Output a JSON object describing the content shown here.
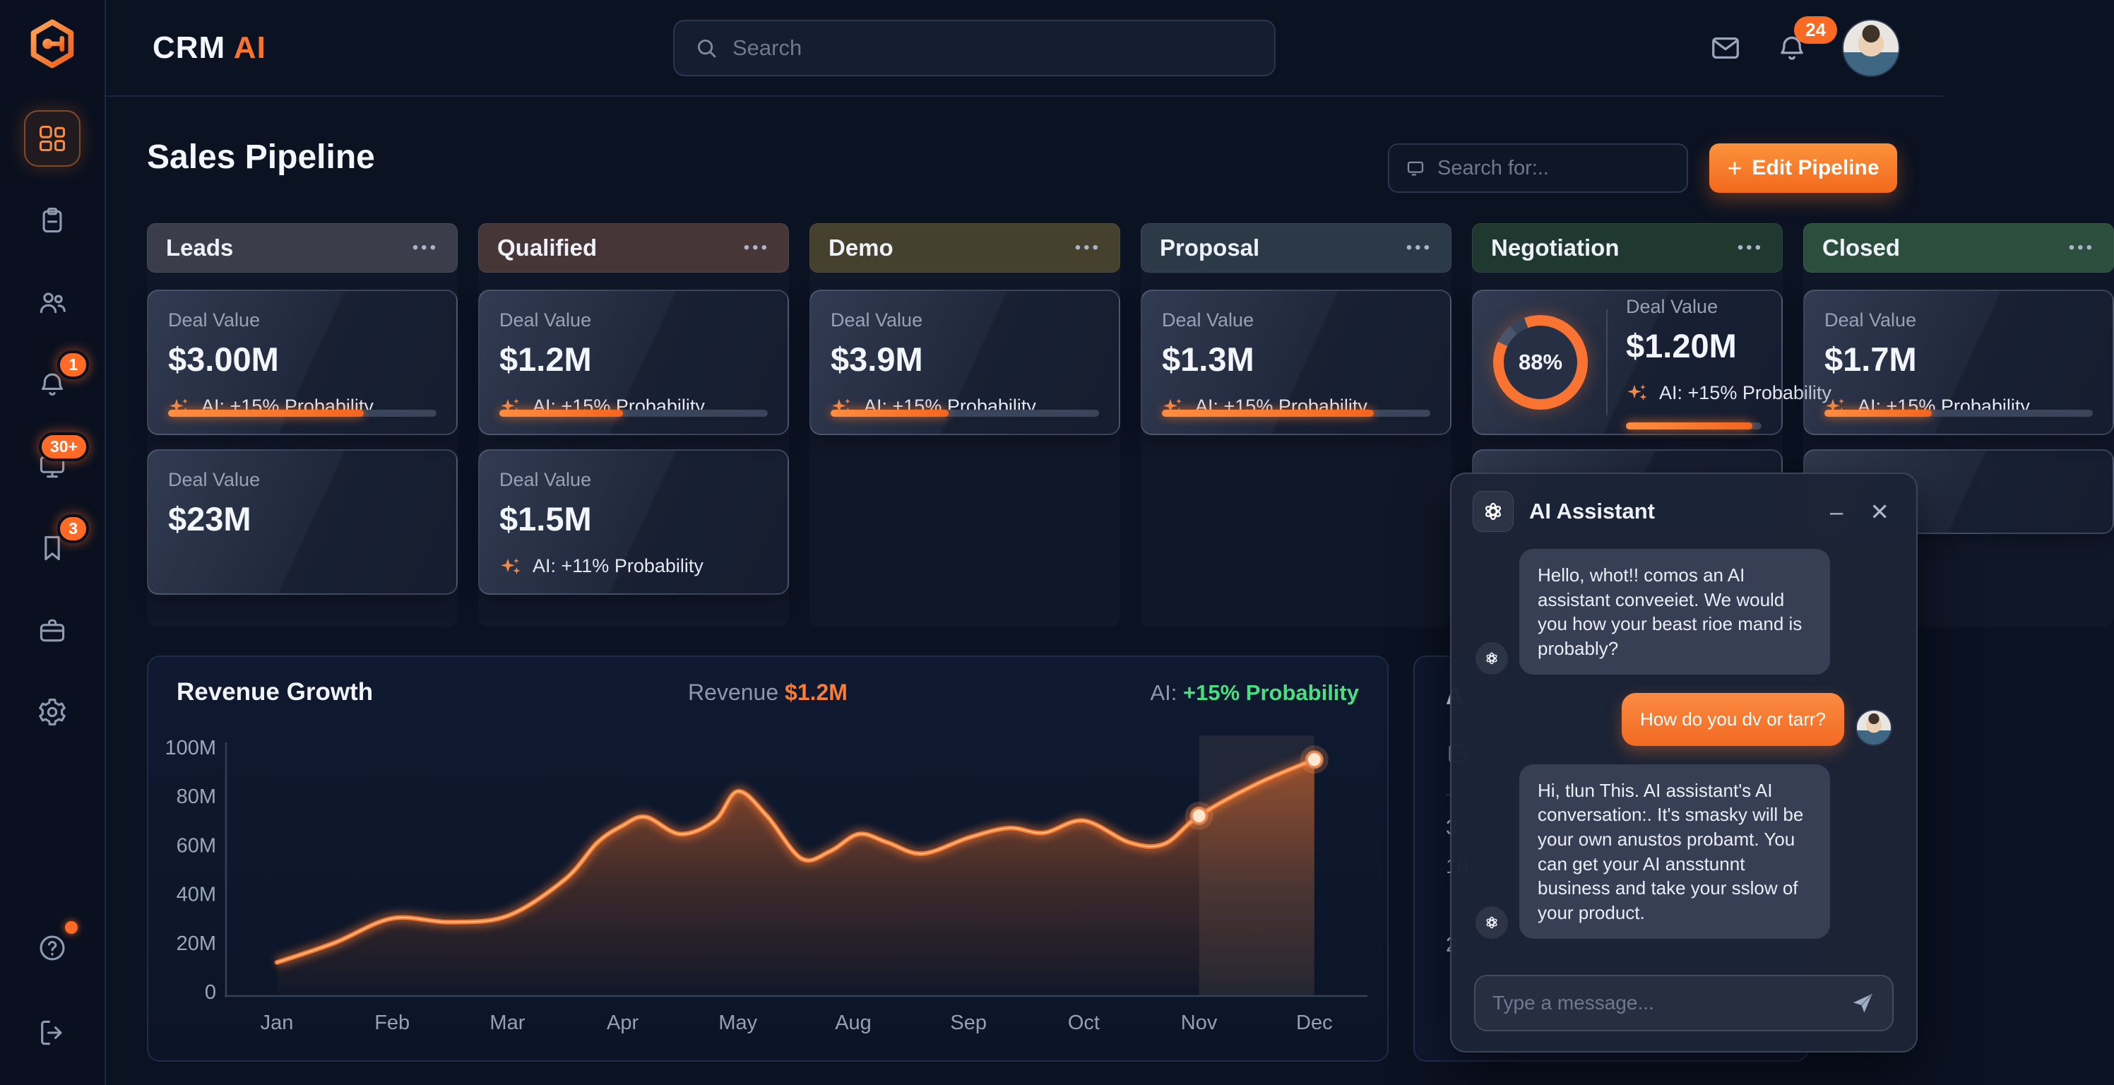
{
  "brand": {
    "name": "CRM",
    "accent": "AI"
  },
  "topbar": {
    "search_placeholder": "Search",
    "notification_count": "24"
  },
  "sidebar": {
    "items": [
      {
        "id": "dashboard",
        "icon": "grid",
        "active": true
      },
      {
        "id": "tasks",
        "icon": "clipboard"
      },
      {
        "id": "contacts",
        "icon": "users"
      },
      {
        "id": "notifications",
        "icon": "bell",
        "badge": "1"
      },
      {
        "id": "messages",
        "icon": "monitor",
        "badge": "30+"
      },
      {
        "id": "saved",
        "icon": "bookmark",
        "badge": "3"
      },
      {
        "id": "deals",
        "icon": "briefcase"
      },
      {
        "id": "settings",
        "icon": "gear"
      }
    ],
    "footer": [
      {
        "id": "help",
        "icon": "help",
        "dot": true
      },
      {
        "id": "logout",
        "icon": "logout"
      }
    ]
  },
  "page": {
    "title": "Sales Pipeline",
    "filter_placeholder": "Search for:..",
    "edit_button_plus": "+",
    "edit_button": "Edit Pipeline",
    "menu_dots": "•••"
  },
  "columns": [
    {
      "title": "Leads",
      "tint": "#3c3d4a",
      "cards": [
        {
          "label": "Deal Value",
          "value": "$3.00M",
          "ai": "AI: +15% Probability",
          "progress": 73
        },
        {
          "label": "Deal Value",
          "value": "$23M"
        }
      ]
    },
    {
      "title": "Qualified",
      "tint": "#473637",
      "cards": [
        {
          "label": "Deal Value",
          "value": "$1.2M",
          "ai": "AI: +15% Probability",
          "progress": 46
        },
        {
          "label": "Deal Value",
          "value": "$1.5M",
          "ai": "AI: +11% Probability"
        }
      ]
    },
    {
      "title": "Demo",
      "tint": "#46402e",
      "cards": [
        {
          "label": "Deal Value",
          "value": "$3.9M",
          "ai": "AI: +15% Probability",
          "progress": 44
        }
      ]
    },
    {
      "title": "Proposal",
      "tint": "#2c3a48",
      "cards": [
        {
          "label": "Deal Value",
          "value": "$1.3M",
          "ai": "AI: +15% Probability",
          "progress": 79
        }
      ]
    },
    {
      "title": "Negotiation",
      "tint": "#1f3930",
      "cards": [
        {
          "gauge": "88%",
          "label": "Deal Value",
          "value": "$1.20M",
          "ai": "AI: +15% Probability",
          "progress": 93
        },
        {
          "sliver": true
        }
      ]
    },
    {
      "title": "Closed",
      "tint": "#2b4f3c",
      "cards": [
        {
          "label": "Deal Value",
          "value": "$1.7M",
          "ai": "AI: +15% Probability",
          "progress": 40
        },
        {
          "sliver": true
        }
      ]
    }
  ],
  "chart_data": {
    "type": "area",
    "title": "Revenue Growth",
    "revenue_label": "Revenue",
    "revenue_value": "$1.2M",
    "ai_label": "AI:",
    "ai_value": "+15% Probability",
    "months": [
      "Jan",
      "Feb",
      "Mar",
      "Apr",
      "May",
      "Aug",
      "Sep",
      "Oct",
      "Nov",
      "Dec"
    ],
    "values": [
      12,
      30,
      31,
      68,
      82,
      60,
      64,
      70,
      72,
      95
    ],
    "y_ticks": [
      {
        "label": "100M",
        "value": 100
      },
      {
        "label": "80M",
        "value": 80
      },
      {
        "label": "60M",
        "value": 60
      },
      {
        "label": "40M",
        "value": 40
      },
      {
        "label": "20M",
        "value": 20
      },
      {
        "label": "0",
        "value": 0
      }
    ],
    "ylim": [
      0,
      100
    ],
    "grid": false,
    "highlight_band": [
      8,
      9
    ],
    "markers": [
      {
        "x": 8,
        "y": 72
      },
      {
        "x": 9,
        "y": 95
      }
    ],
    "curve": [
      [
        0,
        12
      ],
      [
        0.5,
        20
      ],
      [
        1,
        30
      ],
      [
        1.5,
        28.5
      ],
      [
        2,
        31
      ],
      [
        2.5,
        46
      ],
      [
        2.78,
        61
      ],
      [
        3,
        68
      ],
      [
        3.2,
        71.5
      ],
      [
        3.5,
        64.5
      ],
      [
        3.8,
        70
      ],
      [
        4,
        82
      ],
      [
        4.25,
        72
      ],
      [
        4.55,
        54.5
      ],
      [
        4.8,
        57.5
      ],
      [
        5.05,
        64.5
      ],
      [
        5.3,
        61
      ],
      [
        5.6,
        56.5
      ],
      [
        6,
        63
      ],
      [
        6.35,
        67
      ],
      [
        6.65,
        65
      ],
      [
        7,
        70
      ],
      [
        7.4,
        61
      ],
      [
        7.7,
        60.5
      ],
      [
        8,
        72
      ],
      [
        8.5,
        85
      ],
      [
        9,
        95
      ]
    ],
    "line_color": "#fc7b2e",
    "fill_color": "#f07028",
    "positive_color": "#4ade80"
  },
  "stats_panel": {
    "title_fragment": "A",
    "values": [
      "3",
      "10",
      "2"
    ]
  },
  "chat": {
    "title": "AI Assistant",
    "minimize_glyph": "–",
    "close_glyph": "✕",
    "input_placeholder": "Type a message...",
    "messages": [
      {
        "role": "assistant",
        "text": "Hello, whot!! comos an AI assistant conveeiet. We would you how your beast rioe mand is probably?"
      },
      {
        "role": "user",
        "text": "How do you dv or tarr?"
      },
      {
        "role": "assistant",
        "text": "Hi, tlun This. AI assistant's AI conversation:. It's smasky will be your own anustos probamt. You can get your AI ansstunnt business and take your sslow of your product."
      }
    ]
  },
  "colors": {
    "accent_orange": "#f97330",
    "badge_orange": "#ff6b26",
    "positive_green": "#4ade80",
    "background": "#0b1222",
    "sidebar": "#0a101f"
  }
}
